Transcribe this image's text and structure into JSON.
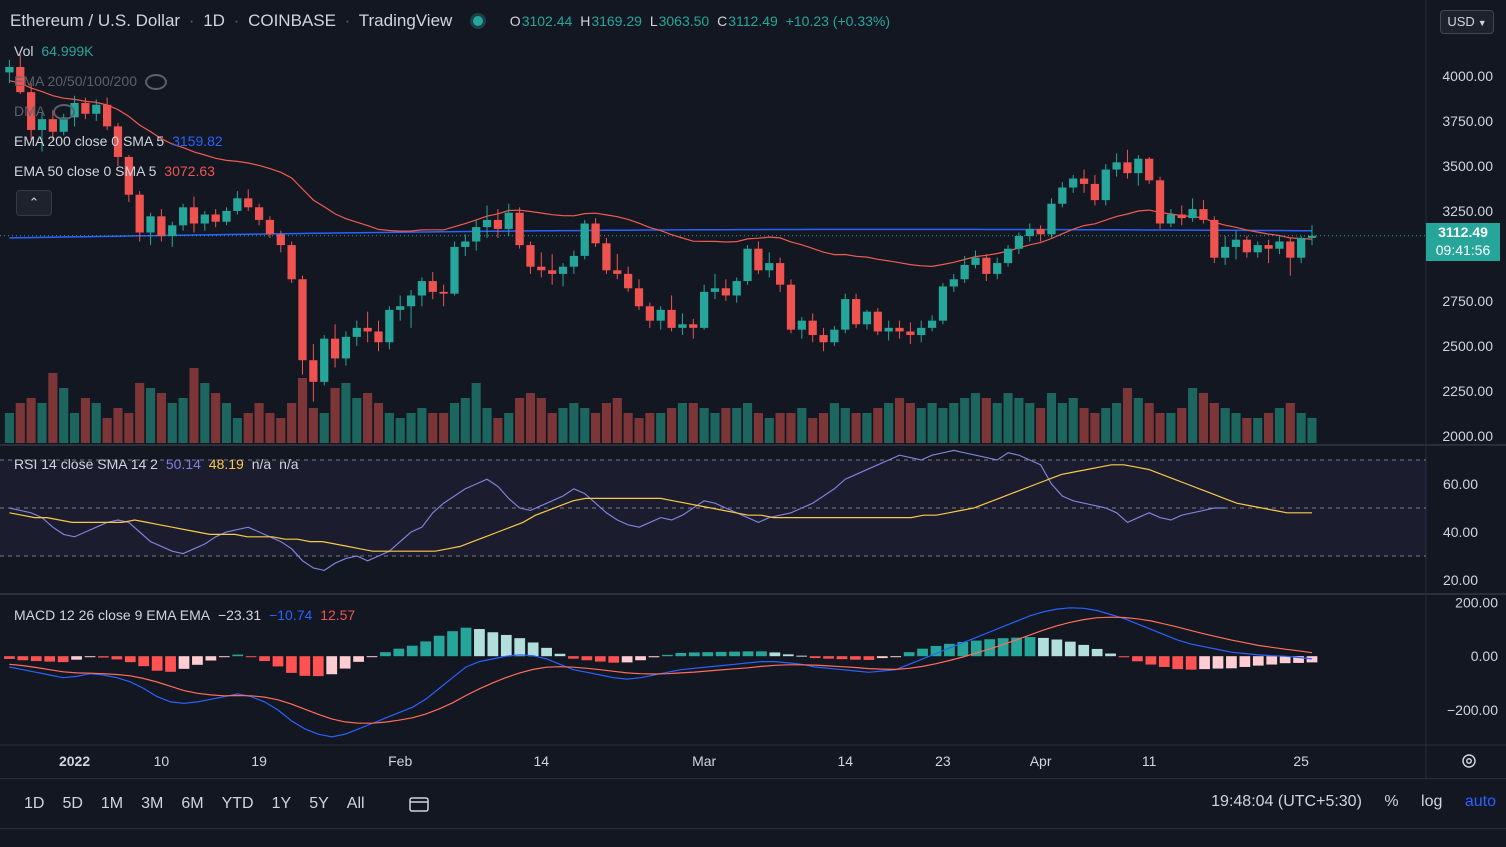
{
  "header": {
    "symbol": "Ethereum / U.S. Dollar",
    "interval": "1D",
    "exchange": "COINBASE",
    "source": "TradingView",
    "open_label": "O",
    "open": "3102.44",
    "high_label": "H",
    "high": "3169.29",
    "low_label": "L",
    "low": "3063.50",
    "close_label": "C",
    "close": "3112.49",
    "change": "+10.23 (+0.33%)"
  },
  "currency_button": "USD",
  "indicators": {
    "vol": {
      "name": "Vol",
      "value": "64.999K"
    },
    "ema_multi": {
      "name": "EMA 20/50/100/200"
    },
    "dma": {
      "name": "DMA"
    },
    "ema200": {
      "name": "EMA 200 close 0 SMA 5",
      "value": "3159.82"
    },
    "ema50": {
      "name": "EMA 50 close 0 SMA 5",
      "value": "3072.63"
    },
    "collapse": "⌃"
  },
  "rsi": {
    "name": "RSI 14 close SMA 14 2",
    "v1": "50.14",
    "v2": "48.19",
    "v3": "n/a",
    "v4": "n/a"
  },
  "macd": {
    "name": "MACD 12 26 close 9 EMA EMA",
    "v1": "−23.31",
    "v2": "−10.74",
    "v3": "12.57"
  },
  "price_tag": {
    "price": "3112.49",
    "countdown": "09:41:56"
  },
  "bottom": {
    "ranges": [
      "1D",
      "5D",
      "1M",
      "3M",
      "6M",
      "YTD",
      "1Y",
      "5Y",
      "All"
    ],
    "clock": "19:48:04 (UTC+5:30)",
    "percent": "%",
    "log": "log",
    "auto": "auto"
  },
  "colors": {
    "up": "#26a69a",
    "down": "#ef5350",
    "ema200": "#2962ff",
    "ema50": "#f05b4f",
    "rsi": "#7e81d8",
    "rsi_ma": "#f7c948",
    "macd": "#2962ff",
    "signal": "#ff6d5a",
    "bg": "#131722",
    "grid": "#1e222d",
    "text": "#d1d4dc"
  },
  "chart_data": {
    "type": "candlestick",
    "price_axis": {
      "ticks": [
        "4000.00",
        "3750.00",
        "3500.00",
        "3250.00",
        "2750.00",
        "2500.00",
        "2250.00",
        "2000.00"
      ],
      "range": [
        1960,
        4200
      ]
    },
    "rsi_axis": {
      "ticks": [
        "60.00",
        "40.00",
        "20.00"
      ],
      "range": [
        15,
        75
      ],
      "bands": [
        30,
        50,
        70
      ]
    },
    "macd_axis": {
      "ticks": [
        "200.00",
        "0.00",
        "−200.00"
      ],
      "range": [
        -330,
        220
      ]
    },
    "time_axis": {
      "labels": [
        {
          "label": "2022",
          "index": 6
        },
        {
          "label": "10",
          "index": 14
        },
        {
          "label": "19",
          "index": 23
        },
        {
          "label": "Feb",
          "index": 36
        },
        {
          "label": "14",
          "index": 49
        },
        {
          "label": "Mar",
          "index": 64
        },
        {
          "label": "14",
          "index": 77
        },
        {
          "label": "23",
          "index": 86
        },
        {
          "label": "Apr",
          "index": 95
        },
        {
          "label": "11",
          "index": 105
        },
        {
          "label": "25",
          "index": 119
        }
      ]
    },
    "candles": [
      [
        4020,
        4090,
        3960,
        4050
      ],
      [
        4050,
        4120,
        3900,
        3910
      ],
      [
        3910,
        3960,
        3650,
        3700
      ],
      [
        3700,
        3800,
        3580,
        3760
      ],
      [
        3760,
        3810,
        3640,
        3690
      ],
      [
        3690,
        3790,
        3670,
        3770
      ],
      [
        3770,
        3890,
        3720,
        3850
      ],
      [
        3850,
        3880,
        3760,
        3790
      ],
      [
        3790,
        3870,
        3750,
        3840
      ],
      [
        3840,
        3880,
        3700,
        3720
      ],
      [
        3720,
        3740,
        3500,
        3550
      ],
      [
        3550,
        3560,
        3300,
        3340
      ],
      [
        3340,
        3360,
        3080,
        3130
      ],
      [
        3130,
        3240,
        3060,
        3220
      ],
      [
        3220,
        3260,
        3080,
        3110
      ],
      [
        3110,
        3190,
        3050,
        3170
      ],
      [
        3170,
        3290,
        3140,
        3270
      ],
      [
        3270,
        3330,
        3130,
        3180
      ],
      [
        3180,
        3250,
        3140,
        3230
      ],
      [
        3230,
        3260,
        3160,
        3190
      ],
      [
        3190,
        3270,
        3170,
        3250
      ],
      [
        3250,
        3360,
        3230,
        3320
      ],
      [
        3320,
        3370,
        3250,
        3270
      ],
      [
        3270,
        3290,
        3170,
        3200
      ],
      [
        3200,
        3220,
        3100,
        3120
      ],
      [
        3120,
        3140,
        3020,
        3060
      ],
      [
        3060,
        3080,
        2850,
        2870
      ],
      [
        2870,
        2890,
        2340,
        2420
      ],
      [
        2420,
        2510,
        2190,
        2300
      ],
      [
        2300,
        2560,
        2280,
        2540
      ],
      [
        2540,
        2620,
        2380,
        2430
      ],
      [
        2430,
        2580,
        2390,
        2550
      ],
      [
        2550,
        2640,
        2500,
        2600
      ],
      [
        2600,
        2690,
        2520,
        2580
      ],
      [
        2580,
        2640,
        2470,
        2520
      ],
      [
        2520,
        2720,
        2480,
        2700
      ],
      [
        2700,
        2780,
        2640,
        2720
      ],
      [
        2720,
        2810,
        2600,
        2780
      ],
      [
        2780,
        2880,
        2720,
        2860
      ],
      [
        2860,
        2910,
        2760,
        2800
      ],
      [
        2800,
        2840,
        2720,
        2790
      ],
      [
        2790,
        3080,
        2780,
        3050
      ],
      [
        3050,
        3120,
        3000,
        3080
      ],
      [
        3080,
        3200,
        3030,
        3160
      ],
      [
        3160,
        3280,
        3100,
        3200
      ],
      [
        3200,
        3260,
        3100,
        3150
      ],
      [
        3150,
        3290,
        3110,
        3240
      ],
      [
        3240,
        3270,
        3040,
        3060
      ],
      [
        3060,
        3080,
        2900,
        2940
      ],
      [
        2940,
        3020,
        2880,
        2920
      ],
      [
        2920,
        3010,
        2840,
        2900
      ],
      [
        2900,
        2960,
        2830,
        2940
      ],
      [
        2940,
        3030,
        2900,
        3000
      ],
      [
        3000,
        3200,
        2980,
        3180
      ],
      [
        3180,
        3210,
        3050,
        3070
      ],
      [
        3070,
        3100,
        2900,
        2920
      ],
      [
        2920,
        3010,
        2870,
        2900
      ],
      [
        2900,
        2940,
        2800,
        2820
      ],
      [
        2820,
        2870,
        2700,
        2720
      ],
      [
        2720,
        2740,
        2600,
        2640
      ],
      [
        2640,
        2720,
        2590,
        2700
      ],
      [
        2700,
        2780,
        2580,
        2600
      ],
      [
        2600,
        2680,
        2560,
        2620
      ],
      [
        2620,
        2650,
        2540,
        2600
      ],
      [
        2600,
        2840,
        2590,
        2800
      ],
      [
        2800,
        2900,
        2760,
        2820
      ],
      [
        2820,
        2870,
        2750,
        2780
      ],
      [
        2780,
        2880,
        2740,
        2860
      ],
      [
        2860,
        3060,
        2840,
        3040
      ],
      [
        3040,
        3080,
        2900,
        2920
      ],
      [
        2920,
        3020,
        2880,
        2960
      ],
      [
        2960,
        2990,
        2800,
        2840
      ],
      [
        2840,
        2870,
        2570,
        2590
      ],
      [
        2590,
        2660,
        2540,
        2640
      ],
      [
        2640,
        2680,
        2520,
        2560
      ],
      [
        2560,
        2600,
        2470,
        2520
      ],
      [
        2520,
        2610,
        2500,
        2590
      ],
      [
        2590,
        2790,
        2570,
        2760
      ],
      [
        2760,
        2790,
        2600,
        2620
      ],
      [
        2620,
        2700,
        2590,
        2690
      ],
      [
        2690,
        2710,
        2560,
        2580
      ],
      [
        2580,
        2640,
        2530,
        2600
      ],
      [
        2600,
        2640,
        2540,
        2580
      ],
      [
        2580,
        2630,
        2510,
        2560
      ],
      [
        2560,
        2640,
        2520,
        2600
      ],
      [
        2600,
        2670,
        2580,
        2640
      ],
      [
        2640,
        2850,
        2620,
        2830
      ],
      [
        2830,
        2900,
        2800,
        2870
      ],
      [
        2870,
        3000,
        2850,
        2950
      ],
      [
        2950,
        3030,
        2930,
        2990
      ],
      [
        2990,
        3010,
        2860,
        2900
      ],
      [
        2900,
        2990,
        2870,
        2960
      ],
      [
        2960,
        3060,
        2940,
        3040
      ],
      [
        3040,
        3130,
        3010,
        3110
      ],
      [
        3110,
        3180,
        3080,
        3150
      ],
      [
        3150,
        3170,
        3080,
        3120
      ],
      [
        3120,
        3320,
        3100,
        3290
      ],
      [
        3290,
        3410,
        3270,
        3380
      ],
      [
        3380,
        3450,
        3350,
        3430
      ],
      [
        3430,
        3480,
        3350,
        3400
      ],
      [
        3400,
        3450,
        3280,
        3310
      ],
      [
        3310,
        3510,
        3280,
        3480
      ],
      [
        3480,
        3570,
        3440,
        3520
      ],
      [
        3520,
        3590,
        3430,
        3460
      ],
      [
        3460,
        3560,
        3390,
        3540
      ],
      [
        3540,
        3550,
        3400,
        3420
      ],
      [
        3420,
        3440,
        3150,
        3180
      ],
      [
        3180,
        3260,
        3160,
        3230
      ],
      [
        3230,
        3280,
        3170,
        3210
      ],
      [
        3210,
        3320,
        3190,
        3260
      ],
      [
        3260,
        3310,
        3180,
        3200
      ],
      [
        3200,
        3220,
        2960,
        2990
      ],
      [
        2990,
        3110,
        2950,
        3050
      ],
      [
        3050,
        3140,
        2980,
        3090
      ],
      [
        3090,
        3110,
        2990,
        3020
      ],
      [
        3020,
        3080,
        2990,
        3060
      ],
      [
        3060,
        3090,
        2960,
        3040
      ],
      [
        3040,
        3110,
        3010,
        3080
      ],
      [
        3080,
        3100,
        2890,
        2990
      ],
      [
        2990,
        3110,
        2960,
        3100
      ],
      [
        3100,
        3170,
        3060,
        3112
      ]
    ],
    "volume": [
      30,
      40,
      45,
      40,
      70,
      55,
      30,
      45,
      40,
      25,
      35,
      30,
      60,
      55,
      50,
      40,
      45,
      75,
      60,
      50,
      40,
      25,
      30,
      40,
      30,
      25,
      40,
      65,
      35,
      30,
      55,
      60,
      45,
      50,
      40,
      30,
      25,
      30,
      35,
      30,
      30,
      40,
      45,
      60,
      35,
      25,
      30,
      45,
      50,
      45,
      30,
      35,
      40,
      35,
      30,
      40,
      45,
      30,
      25,
      30,
      30,
      35,
      40,
      40,
      35,
      30,
      35,
      35,
      40,
      30,
      25,
      30,
      30,
      35,
      25,
      30,
      40,
      35,
      30,
      30,
      35,
      40,
      45,
      40,
      35,
      40,
      35,
      40,
      45,
      50,
      45,
      40,
      50,
      45,
      40,
      35,
      50,
      40,
      45,
      35,
      30,
      35,
      40,
      55,
      45,
      40,
      30,
      30,
      35,
      55,
      50,
      40,
      35,
      30,
      25,
      25,
      30,
      35,
      40,
      30,
      25
    ],
    "ema200": {
      "start": 3100,
      "end": 3160
    },
    "ema50": {
      "start": 3880,
      "end": 3072
    },
    "rsi_values": [
      50,
      49,
      48,
      46,
      42,
      39,
      38,
      40,
      42,
      44,
      45,
      44,
      40,
      36,
      34,
      32,
      31,
      33,
      35,
      38,
      40,
      41,
      42,
      40,
      38,
      36,
      33,
      28,
      25,
      24,
      27,
      29,
      30,
      28,
      30,
      32,
      36,
      40,
      42,
      48,
      52,
      55,
      58,
      60,
      62,
      59,
      54,
      50,
      49,
      51,
      53,
      55,
      58,
      56,
      52,
      48,
      45,
      43,
      42,
      44,
      46,
      45,
      47,
      50,
      53,
      52,
      50,
      48,
      46,
      44,
      46,
      47,
      48,
      50,
      52,
      55,
      58,
      62,
      64,
      66,
      68,
      70,
      72,
      71,
      70,
      72,
      73,
      74,
      73,
      72,
      71,
      70,
      73,
      72,
      70,
      68,
      60,
      55,
      53,
      52,
      51,
      50,
      48,
      44,
      46,
      48,
      46,
      45,
      47,
      48,
      49,
      50,
      50
    ],
    "rsi_ma_values": [
      48,
      47,
      46,
      46,
      45,
      44,
      44,
      44,
      44,
      44,
      45,
      44,
      43,
      42,
      41,
      40,
      39,
      39,
      39,
      38,
      38,
      38,
      37,
      37,
      36,
      36,
      35,
      34,
      33,
      32,
      32,
      32,
      32,
      32,
      32,
      33,
      34,
      36,
      38,
      40,
      42,
      44,
      47,
      49,
      51,
      53,
      54,
      54,
      54,
      54,
      54,
      54,
      54,
      53,
      52,
      51,
      50,
      49,
      48,
      47,
      47,
      46,
      46,
      46,
      46,
      46,
      46,
      46,
      46,
      46,
      46,
      46,
      46,
      47,
      47,
      48,
      49,
      50,
      52,
      54,
      56,
      58,
      60,
      62,
      64,
      65,
      66,
      67,
      68,
      68,
      67,
      66,
      64,
      62,
      60,
      58,
      56,
      54,
      52,
      51,
      50,
      49,
      48,
      48,
      48
    ],
    "macd_values": [
      -40,
      -50,
      -60,
      -70,
      -80,
      -75,
      -65,
      -70,
      -80,
      -95,
      -120,
      -150,
      -170,
      -175,
      -170,
      -160,
      -150,
      -140,
      -150,
      -170,
      -200,
      -240,
      -270,
      -290,
      -300,
      -290,
      -270,
      -250,
      -230,
      -210,
      -190,
      -160,
      -120,
      -80,
      -40,
      -20,
      -10,
      0,
      5,
      2,
      -10,
      -30,
      -50,
      -60,
      -70,
      -80,
      -85,
      -80,
      -70,
      -60,
      -50,
      -45,
      -40,
      -35,
      -30,
      -25,
      -20,
      -20,
      -25,
      -30,
      -40,
      -45,
      -50,
      -55,
      -60,
      -55,
      -50,
      -30,
      -10,
      10,
      30,
      50,
      70,
      90,
      110,
      130,
      150,
      165,
      175,
      180,
      178,
      170,
      155,
      140,
      120,
      100,
      80,
      60,
      45,
      35,
      25,
      15,
      10,
      5,
      2,
      0,
      -5,
      -10
    ],
    "signal_values": [
      -30,
      -35,
      -42,
      -50,
      -58,
      -62,
      -63,
      -65,
      -68,
      -73,
      -83,
      -96,
      -112,
      -128,
      -138,
      -144,
      -147,
      -146,
      -147,
      -152,
      -162,
      -178,
      -197,
      -216,
      -233,
      -244,
      -249,
      -249,
      -245,
      -238,
      -229,
      -215,
      -196,
      -173,
      -146,
      -121,
      -99,
      -79,
      -62,
      -49,
      -41,
      -39,
      -41,
      -45,
      -50,
      -56,
      -62,
      -65,
      -66,
      -65,
      -62,
      -59,
      -55,
      -51,
      -47,
      -43,
      -38,
      -34,
      -32,
      -32,
      -33,
      -36,
      -39,
      -42,
      -46,
      -48,
      -49,
      -45,
      -38,
      -28,
      -16,
      -3,
      12,
      27,
      43,
      61,
      79,
      97,
      113,
      126,
      136,
      143,
      145,
      144,
      139,
      131,
      120,
      108,
      95,
      83,
      71,
      60,
      50,
      40,
      33,
      26,
      20,
      13
    ],
    "macd_hist_values": [
      -10,
      -15,
      -18,
      -20,
      -22,
      -13,
      -2,
      -5,
      -12,
      -22,
      -37,
      -54,
      -58,
      -47,
      -32,
      -16,
      -3,
      6,
      -3,
      -18,
      -38,
      -62,
      -73,
      -74,
      -67,
      -46,
      -21,
      -1,
      15,
      28,
      39,
      55,
      76,
      93,
      106,
      101,
      89,
      79,
      67,
      51,
      31,
      9,
      -9,
      -15,
      -20,
      -24,
      -23,
      -15,
      -4,
      5,
      12,
      14,
      15,
      16,
      17,
      18,
      18,
      14,
      7,
      2,
      -7,
      -9,
      -11,
      -13,
      -14,
      -7,
      -1,
      15,
      28,
      38,
      46,
      53,
      58,
      63,
      67,
      69,
      71,
      68,
      62,
      54,
      42,
      27,
      10,
      -4,
      -19,
      -31,
      -40,
      -48,
      -50,
      -48,
      -46,
      -45,
      -40,
      -35,
      -31,
      -26,
      -25,
      -23
    ]
  }
}
